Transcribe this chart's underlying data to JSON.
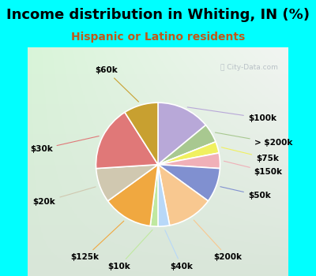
{
  "title": "Income distribution in Whiting, IN (%)",
  "subtitle": "Hispanic or Latino residents",
  "background_color": "#00FFFF",
  "watermark": "City-Data.com",
  "slices": [
    {
      "label": "$100k",
      "value": 14,
      "color": "#b8a8d8"
    },
    {
      "label": "> $200k",
      "value": 5,
      "color": "#a8c890"
    },
    {
      "label": "$75k",
      "value": 3,
      "color": "#f0f060"
    },
    {
      "label": "$150k",
      "value": 4,
      "color": "#f0b0b8"
    },
    {
      "label": "$50k",
      "value": 9,
      "color": "#8090d0"
    },
    {
      "label": "$200k",
      "value": 12,
      "color": "#f8c890"
    },
    {
      "label": "$40k",
      "value": 3,
      "color": "#b8d8f8"
    },
    {
      "label": "$10k",
      "value": 2,
      "color": "#c0e8a0"
    },
    {
      "label": "$125k",
      "value": 13,
      "color": "#f0a840"
    },
    {
      "label": "$20k",
      "value": 9,
      "color": "#d0c8b0"
    },
    {
      "label": "$30k",
      "value": 17,
      "color": "#e07878"
    },
    {
      "label": "$60k",
      "value": 9,
      "color": "#c8a030"
    }
  ],
  "title_fontsize": 13,
  "subtitle_fontsize": 10,
  "label_fontsize": 7.5
}
